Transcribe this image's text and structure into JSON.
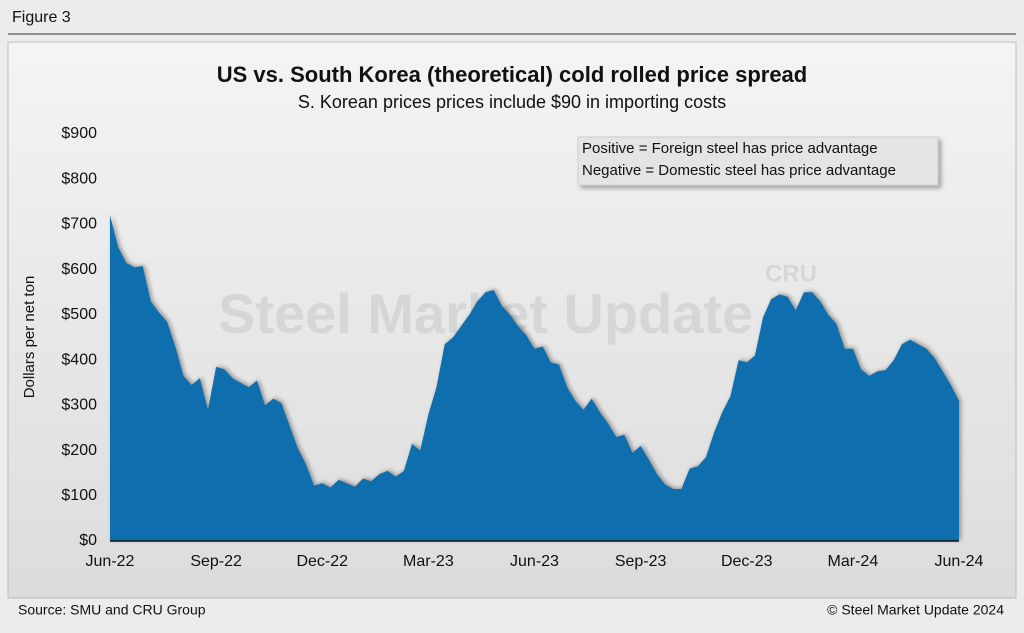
{
  "figure_label": "Figure 3",
  "source": "Source: SMU and CRU Group",
  "copyright": "© Steel Market Update 2024",
  "watermark": "Steel Market Update",
  "watermark_logo": "CRU",
  "chart_data": {
    "type": "area",
    "title": "US vs. South Korea (theoretical) cold rolled price spread",
    "subtitle": "S. Korean prices prices include $90 in importing costs",
    "y_label": "Dollars per net ton",
    "annotations": [
      "Positive = Foreign steel has price advantage",
      "Negative = Domestic steel has price advantage"
    ],
    "color": "#0f6fae",
    "categories": [
      "Jun-22",
      null,
      null,
      null,
      null,
      null,
      null,
      null,
      null,
      null,
      null,
      null,
      null,
      "Sep-22",
      null,
      null,
      null,
      null,
      null,
      null,
      null,
      null,
      null,
      null,
      null,
      null,
      "Dec-22",
      null,
      null,
      null,
      null,
      null,
      null,
      null,
      null,
      null,
      null,
      null,
      null,
      "Mar-23",
      null,
      null,
      null,
      null,
      null,
      null,
      null,
      null,
      null,
      null,
      null,
      null,
      "Jun-23",
      null,
      null,
      null,
      null,
      null,
      null,
      null,
      null,
      null,
      null,
      null,
      null,
      "Sep-23",
      null,
      null,
      null,
      null,
      null,
      null,
      null,
      null,
      null,
      null,
      null,
      null,
      "Dec-23",
      null,
      null,
      null,
      null,
      null,
      null,
      null,
      null,
      null,
      null,
      null,
      null,
      "Mar-24",
      null,
      null,
      null,
      null,
      null,
      null,
      null,
      null,
      null,
      null,
      null,
      null,
      "Jun-24"
    ],
    "values": [
      720,
      650,
      615,
      605,
      608,
      530,
      505,
      485,
      430,
      365,
      345,
      360,
      290,
      385,
      380,
      360,
      350,
      340,
      355,
      300,
      315,
      305,
      255,
      205,
      170,
      122,
      128,
      118,
      135,
      128,
      120,
      138,
      132,
      148,
      155,
      142,
      155,
      215,
      200,
      280,
      340,
      435,
      450,
      475,
      500,
      530,
      550,
      555,
      520,
      500,
      475,
      455,
      425,
      430,
      395,
      390,
      340,
      310,
      290,
      315,
      285,
      260,
      230,
      235,
      195,
      210,
      180,
      148,
      125,
      115,
      115,
      160,
      165,
      185,
      240,
      285,
      320,
      400,
      395,
      410,
      495,
      535,
      545,
      540,
      510,
      550,
      550,
      530,
      500,
      480,
      425,
      425,
      380,
      365,
      375,
      378,
      400,
      435,
      445,
      435,
      425,
      405,
      375,
      345,
      310
    ],
    "ylim": [
      0,
      900
    ],
    "yticks": [
      {
        "value": 0,
        "label": "$0"
      },
      {
        "value": 100,
        "label": "$100"
      },
      {
        "value": 200,
        "label": "$200"
      },
      {
        "value": 300,
        "label": "$300"
      },
      {
        "value": 400,
        "label": "$400"
      },
      {
        "value": 500,
        "label": "$500"
      },
      {
        "value": 600,
        "label": "$600"
      },
      {
        "value": 700,
        "label": "$700"
      },
      {
        "value": 800,
        "label": "$800"
      },
      {
        "value": 900,
        "label": "$900"
      }
    ],
    "grid": false
  }
}
